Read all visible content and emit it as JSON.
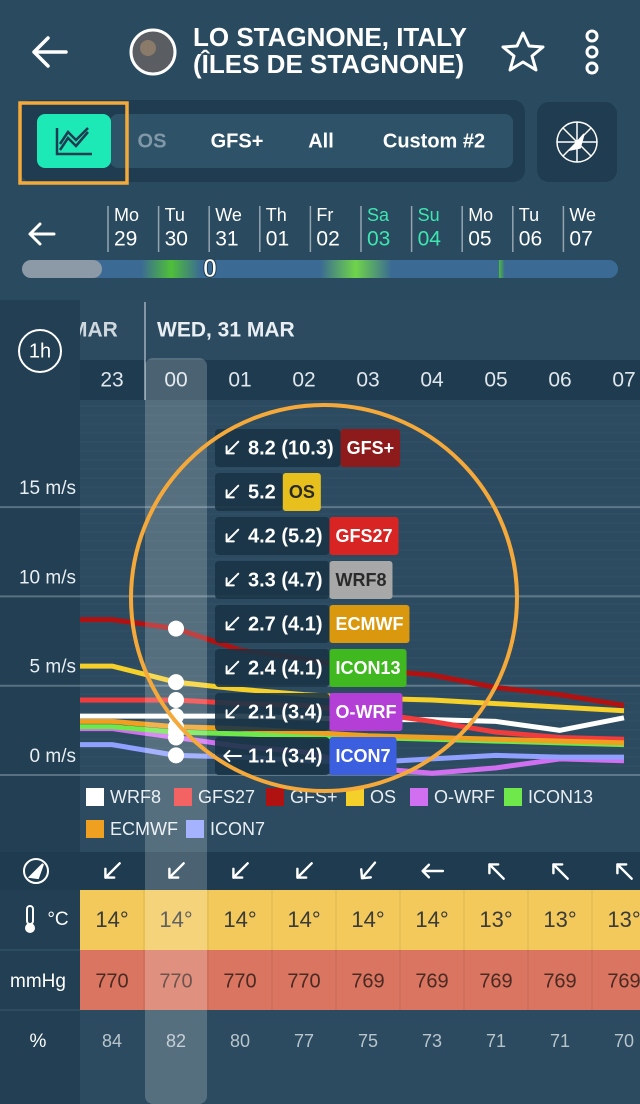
{
  "header": {
    "title": [
      "LO STAGNONE, ITALY",
      "(ÎLES DE STAGNONE)"
    ]
  },
  "tabs": [
    "OS",
    "GFS+",
    "All",
    "Custom #2"
  ],
  "days": {
    "weekdays": [
      "Mo",
      "Tu",
      "We",
      "Th",
      "Fr",
      "Sa",
      "Su",
      "Mo",
      "Tu",
      "We"
    ],
    "dates": [
      "29",
      "30",
      "31",
      "01",
      "02",
      "03",
      "04",
      "05",
      "06",
      "07"
    ]
  },
  "timeline_label": "0",
  "interval": "1h",
  "previous_month": "MAR",
  "date_heading": "WED, 31 MAR",
  "chart_data": {
    "type": "line",
    "categories": [
      "23",
      "00",
      "01",
      "02",
      "03",
      "04",
      "05",
      "06",
      "07"
    ],
    "ylim": [
      0,
      21
    ],
    "yticks": [
      {
        "value": 0,
        "label": "0 m/s"
      },
      {
        "value": 5,
        "label": "5 m/s"
      },
      {
        "value": 10,
        "label": "10 m/s"
      },
      {
        "value": 15,
        "label": "15 m/s"
      }
    ],
    "series": [
      {
        "name": "WRF8",
        "color": "#ffffff",
        "values": [
          3.3,
          3.3,
          3.3,
          3.2,
          3.1,
          3.1,
          3.0,
          2.5,
          3.2
        ]
      },
      {
        "name": "GFS27",
        "color": "#f03c3c",
        "values": [
          4.2,
          4.2,
          4.0,
          3.9,
          3.5,
          3.0,
          2.4,
          2.1,
          2.0
        ]
      },
      {
        "name": "GFS+",
        "color": "#b01212",
        "values": [
          8.7,
          8.2,
          7.0,
          6.5,
          5.9,
          5.6,
          4.9,
          4.5,
          3.9
        ]
      },
      {
        "name": "OS",
        "color": "#f5d02a",
        "values": [
          6.1,
          5.2,
          4.8,
          4.5,
          4.3,
          4.2,
          4.0,
          3.8,
          3.6
        ]
      },
      {
        "name": "O-WRF",
        "color": "#d070f0",
        "values": [
          2.6,
          2.1,
          1.6,
          1.3,
          0.4,
          0.1,
          0.4,
          0.9,
          0.8
        ]
      },
      {
        "name": "ICON13",
        "color": "#6ee84a",
        "values": [
          2.7,
          2.4,
          2.3,
          2.2,
          2.1,
          2.0,
          1.9,
          1.8,
          1.7
        ]
      },
      {
        "name": "ECMWF",
        "color": "#f0a020",
        "values": [
          3.0,
          2.7,
          2.6,
          2.4,
          2.2,
          2.1,
          2.0,
          1.9,
          1.8
        ]
      },
      {
        "name": "ICON7",
        "color": "#8fa0ff",
        "values": [
          1.7,
          1.1,
          1.0,
          0.8,
          0.7,
          0.9,
          1.1,
          1.0,
          1.0
        ]
      }
    ]
  },
  "tooltip": [
    {
      "value": "8.2 (10.3)",
      "model": "GFS+",
      "color": "#8e1b1b"
    },
    {
      "value": "5.2",
      "model": "OS",
      "color": "#e7c01e"
    },
    {
      "value": "4.2 (5.2)",
      "model": "GFS27",
      "color": "#d92424"
    },
    {
      "value": "3.3 (4.7)",
      "model": "WRF8",
      "color": "#a8a8a8"
    },
    {
      "value": "2.7 (4.1)",
      "model": "ECMWF",
      "color": "#d9980e"
    },
    {
      "value": "2.4 (4.1)",
      "model": "ICON13",
      "color": "#3fb91f"
    },
    {
      "value": "2.1 (3.4)",
      "model": "O-WRF",
      "color": "#b43fd6"
    },
    {
      "value": "1.1 (3.4)",
      "model": "ICON7",
      "color": "#3c5fe0"
    }
  ],
  "table": {
    "temperature_unit": "°C",
    "pressure_unit": "mmHg",
    "humidity_unit": "%",
    "temperature": [
      "14°",
      "14°",
      "14°",
      "14°",
      "14°",
      "14°",
      "13°",
      "13°",
      "13°"
    ],
    "pressure": [
      770,
      770,
      770,
      770,
      769,
      769,
      769,
      769,
      769
    ],
    "humidity": [
      84,
      82,
      80,
      77,
      75,
      73,
      71,
      71,
      70
    ]
  }
}
